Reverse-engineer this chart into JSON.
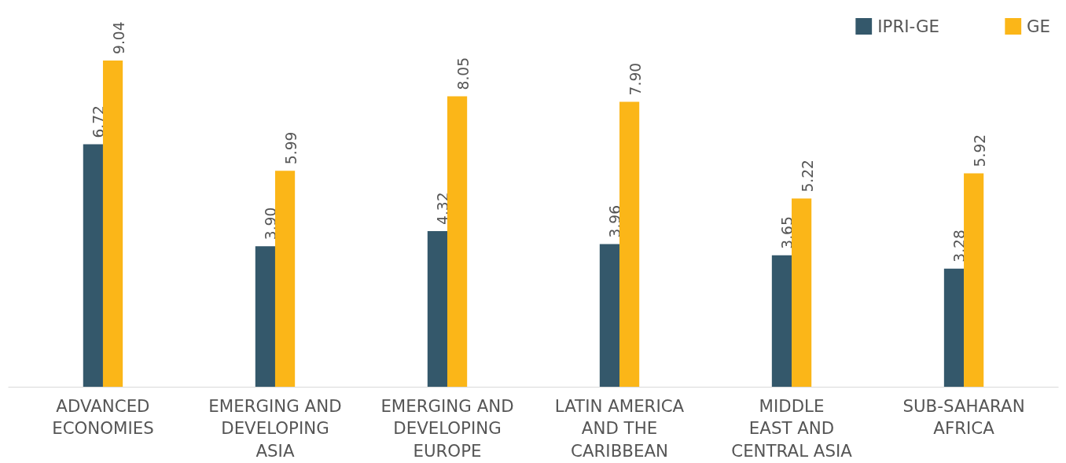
{
  "chart_data": {
    "type": "bar",
    "categories": [
      "ADVANCED\nECONOMIES",
      "EMERGING AND\nDEVELOPING\nASIA",
      "EMERGING AND\nDEVELOPING\nEUROPE",
      "LATIN AMERICA\nAND THE\nCARIBBEAN",
      "MIDDLE\nEAST AND\nCENTRAL ASIA",
      "SUB-SAHARAN\nAFRICA"
    ],
    "series": [
      {
        "name": "IPRI-GE",
        "color": "#34586b",
        "values": [
          6.72,
          3.9,
          4.32,
          3.96,
          3.65,
          3.28
        ],
        "value_labels": [
          "6.72",
          "3.90",
          "4.32",
          "3.96",
          "3.65",
          "3.28"
        ]
      },
      {
        "name": "GE",
        "color": "#fbb618",
        "values": [
          9.04,
          5.99,
          8.05,
          7.9,
          5.22,
          5.92
        ],
        "value_labels": [
          "9.04",
          "5.99",
          "8.05",
          "7.90",
          "5.22",
          "5.92"
        ]
      }
    ],
    "legend": "top right",
    "grid": false
  }
}
